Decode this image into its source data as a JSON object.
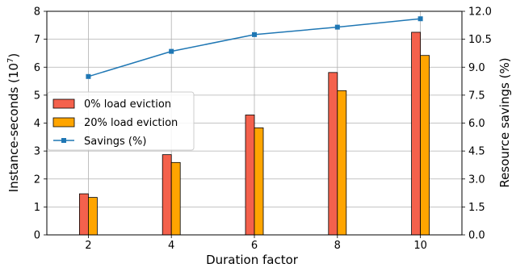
{
  "chart_data": {
    "type": "bar",
    "title": "",
    "xlabel": "Duration factor",
    "ylabel_left_main": "Instance-seconds (10",
    "ylabel_left_sup": "7",
    "ylabel_left_close": ")",
    "ylabel_right": "Resource savings (%)",
    "x": [
      2,
      4,
      6,
      8,
      10
    ],
    "x_tick_labels": [
      "2",
      "4",
      "6",
      "8",
      "10"
    ],
    "xlim": [
      1,
      11
    ],
    "ylim_left": [
      0,
      8
    ],
    "y_left_ticks": [
      "0",
      "1",
      "2",
      "3",
      "4",
      "5",
      "6",
      "7",
      "8"
    ],
    "ylim_right": [
      0,
      12
    ],
    "y_right_ticks": [
      "0.0",
      "1.5",
      "3.0",
      "4.5",
      "6.0",
      "7.5",
      "9.0",
      "10.5",
      "12.0"
    ],
    "grid": true,
    "legend_position": "center-left",
    "series": [
      {
        "name": "0% load eviction",
        "kind": "bar",
        "axis": "left",
        "color": "#f4614c",
        "values": [
          1.47,
          2.87,
          4.29,
          5.81,
          7.25
        ]
      },
      {
        "name": "20% load eviction",
        "kind": "bar",
        "axis": "left",
        "color": "#ffa500",
        "values": [
          1.34,
          2.59,
          3.83,
          5.16,
          6.42
        ]
      },
      {
        "name": "Savings (%)",
        "kind": "line",
        "axis": "right",
        "color": "#1f77b4",
        "values": [
          8.5,
          9.85,
          10.75,
          11.15,
          11.6
        ]
      }
    ]
  }
}
